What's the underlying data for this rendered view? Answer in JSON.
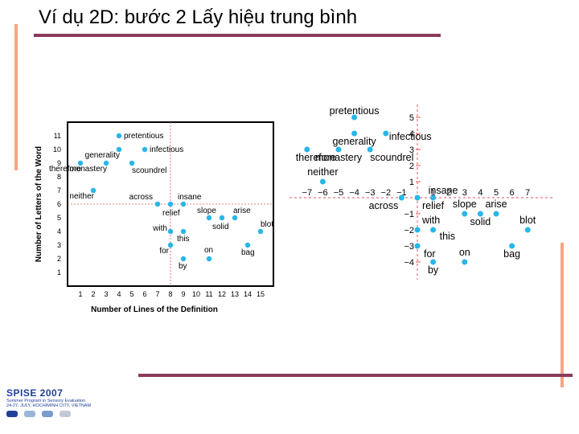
{
  "slide": {
    "title": "Ví dụ 2D: bước 2 Lấy hiệu trung bình",
    "colors": {
      "accent_bar": "#8b3a5a",
      "vertical_bar": "#f4a582",
      "point": "#29b6e8",
      "guide_line": "#e2555c"
    }
  },
  "logo": {
    "title": "SPISE 2007",
    "line1": "Summer Program in Sensory Evaluation",
    "line2": "24-27, JULY, HOCHIMINH CITY, VIETNAM"
  },
  "chart_data": [
    {
      "type": "scatter",
      "title": "",
      "xlabel": "Number of Lines of the Definition",
      "ylabel": "Number of Letters of the Word",
      "xlim": [
        0,
        16
      ],
      "ylim": [
        0,
        12
      ],
      "xticks": [
        1,
        2,
        3,
        4,
        5,
        6,
        7,
        8,
        9,
        10,
        11,
        12,
        13,
        14,
        15
      ],
      "yticks": [
        1,
        2,
        3,
        4,
        5,
        6,
        7,
        8,
        9,
        10,
        11
      ],
      "guides": {
        "x": 8,
        "y": 6
      },
      "points": [
        {
          "label": "pretentious",
          "x": 4,
          "y": 11
        },
        {
          "label": "generality",
          "x": 4,
          "y": 10
        },
        {
          "label": "infectious",
          "x": 6,
          "y": 10
        },
        {
          "label": "monastery",
          "x": 3,
          "y": 9
        },
        {
          "label": "scoundrel",
          "x": 5,
          "y": 9
        },
        {
          "label": "therefore",
          "x": 1,
          "y": 9
        },
        {
          "label": "neither",
          "x": 2,
          "y": 7
        },
        {
          "label": "across",
          "x": 7,
          "y": 6
        },
        {
          "label": "insane",
          "x": 9,
          "y": 6
        },
        {
          "label": "relief",
          "x": 8,
          "y": 6
        },
        {
          "label": "slope",
          "x": 11,
          "y": 5
        },
        {
          "label": "solid",
          "x": 12,
          "y": 5
        },
        {
          "label": "arise",
          "x": 13,
          "y": 5
        },
        {
          "label": "blot",
          "x": 15,
          "y": 4
        },
        {
          "label": "with",
          "x": 8,
          "y": 4
        },
        {
          "label": "this",
          "x": 9,
          "y": 4
        },
        {
          "label": "for",
          "x": 8,
          "y": 3
        },
        {
          "label": "bag",
          "x": 14,
          "y": 3
        },
        {
          "label": "on",
          "x": 11,
          "y": 2
        },
        {
          "label": "by",
          "x": 9,
          "y": 2
        }
      ]
    },
    {
      "type": "scatter",
      "title": "",
      "xlabel": "",
      "ylabel": "",
      "xlim": [
        -8,
        8
      ],
      "ylim": [
        -5,
        6
      ],
      "xticks": [
        -7,
        -6,
        -5,
        -4,
        -3,
        -2,
        -1,
        1,
        2,
        3,
        4,
        5,
        6,
        7
      ],
      "yticks": [
        -4,
        -3,
        -2,
        -1,
        1,
        2,
        3,
        4,
        5
      ],
      "tick_labels_x": [
        "−7",
        "−6",
        "−5",
        "−4",
        "−3",
        "−2",
        "−1",
        "1",
        "2",
        "3",
        "4",
        "5",
        "6",
        "7"
      ],
      "tick_labels_y": [
        "−4",
        "−3",
        "−2",
        "−1",
        "1",
        "2",
        "3",
        "4",
        "5"
      ],
      "points": [
        {
          "label": "pretentious",
          "x": -4,
          "y": 5
        },
        {
          "label": "generality",
          "x": -4,
          "y": 4
        },
        {
          "label": "infectious",
          "x": -2,
          "y": 4
        },
        {
          "label": "monastery",
          "x": -5,
          "y": 3
        },
        {
          "label": "scoundrel",
          "x": -3,
          "y": 3
        },
        {
          "label": "therefore",
          "x": -7,
          "y": 3
        },
        {
          "label": "neither",
          "x": -6,
          "y": 1
        },
        {
          "label": "across",
          "x": -1,
          "y": 0
        },
        {
          "label": "insane",
          "x": 1,
          "y": 0
        },
        {
          "label": "relief",
          "x": 0,
          "y": 0
        },
        {
          "label": "slope",
          "x": 3,
          "y": -1
        },
        {
          "label": "solid",
          "x": 4,
          "y": -1
        },
        {
          "label": "arise",
          "x": 5,
          "y": -1
        },
        {
          "label": "blot",
          "x": 7,
          "y": -2
        },
        {
          "label": "with",
          "x": 0,
          "y": -2
        },
        {
          "label": "this",
          "x": 1,
          "y": -2
        },
        {
          "label": "for",
          "x": 0,
          "y": -3
        },
        {
          "label": "bag",
          "x": 6,
          "y": -3
        },
        {
          "label": "on",
          "x": 3,
          "y": -4
        },
        {
          "label": "by",
          "x": 1,
          "y": -4
        }
      ]
    }
  ]
}
